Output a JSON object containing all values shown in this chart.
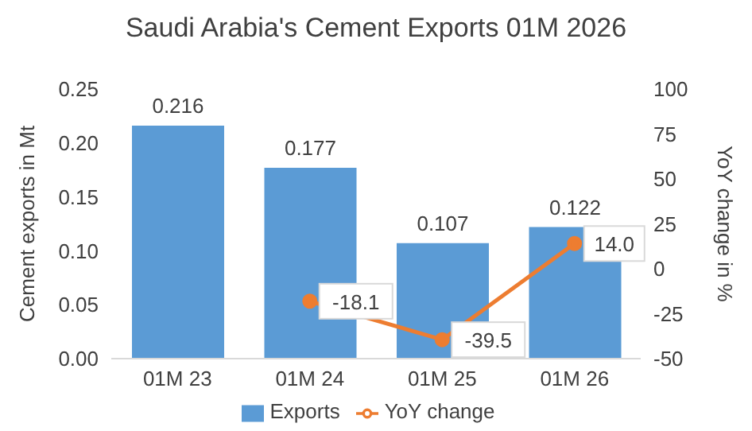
{
  "chart_data": {
    "type": "bar",
    "title": "Saudi Arabia's Cement Exports 01M 2026",
    "categories": [
      "01M 23",
      "01M 24",
      "01M 25",
      "01M 26"
    ],
    "series": [
      {
        "name": "Exports",
        "color": "#5b9bd5",
        "values": [
          0.216,
          0.177,
          0.107,
          0.122
        ],
        "value_labels": [
          "0.216",
          "0.177",
          "0.107",
          "0.122"
        ]
      },
      {
        "name": "YoY change",
        "type": "line",
        "axis": "y2",
        "color": "#ed7d31",
        "values": [
          null,
          -18.1,
          -39.5,
          14.0
        ],
        "value_labels": [
          null,
          "-18.1",
          "-39.5",
          "14.0"
        ]
      }
    ],
    "ylabel": "Cement exports in Mt",
    "y2label": "YoY change in %",
    "ylim": [
      0,
      0.25
    ],
    "yticks": [
      {
        "value": 0,
        "label": "0.00"
      },
      {
        "value": 0.05,
        "label": "0.05"
      },
      {
        "value": 0.1,
        "label": "0.10"
      },
      {
        "value": 0.15,
        "label": "0.15"
      },
      {
        "value": 0.2,
        "label": "0.20"
      },
      {
        "value": 0.25,
        "label": "0.25"
      }
    ],
    "y2lim": [
      -50,
      100
    ],
    "y2ticks": [
      -50,
      -25,
      0,
      25,
      50,
      75,
      100
    ],
    "legend": "bottom",
    "marker": "circle",
    "line_style": "solid"
  }
}
